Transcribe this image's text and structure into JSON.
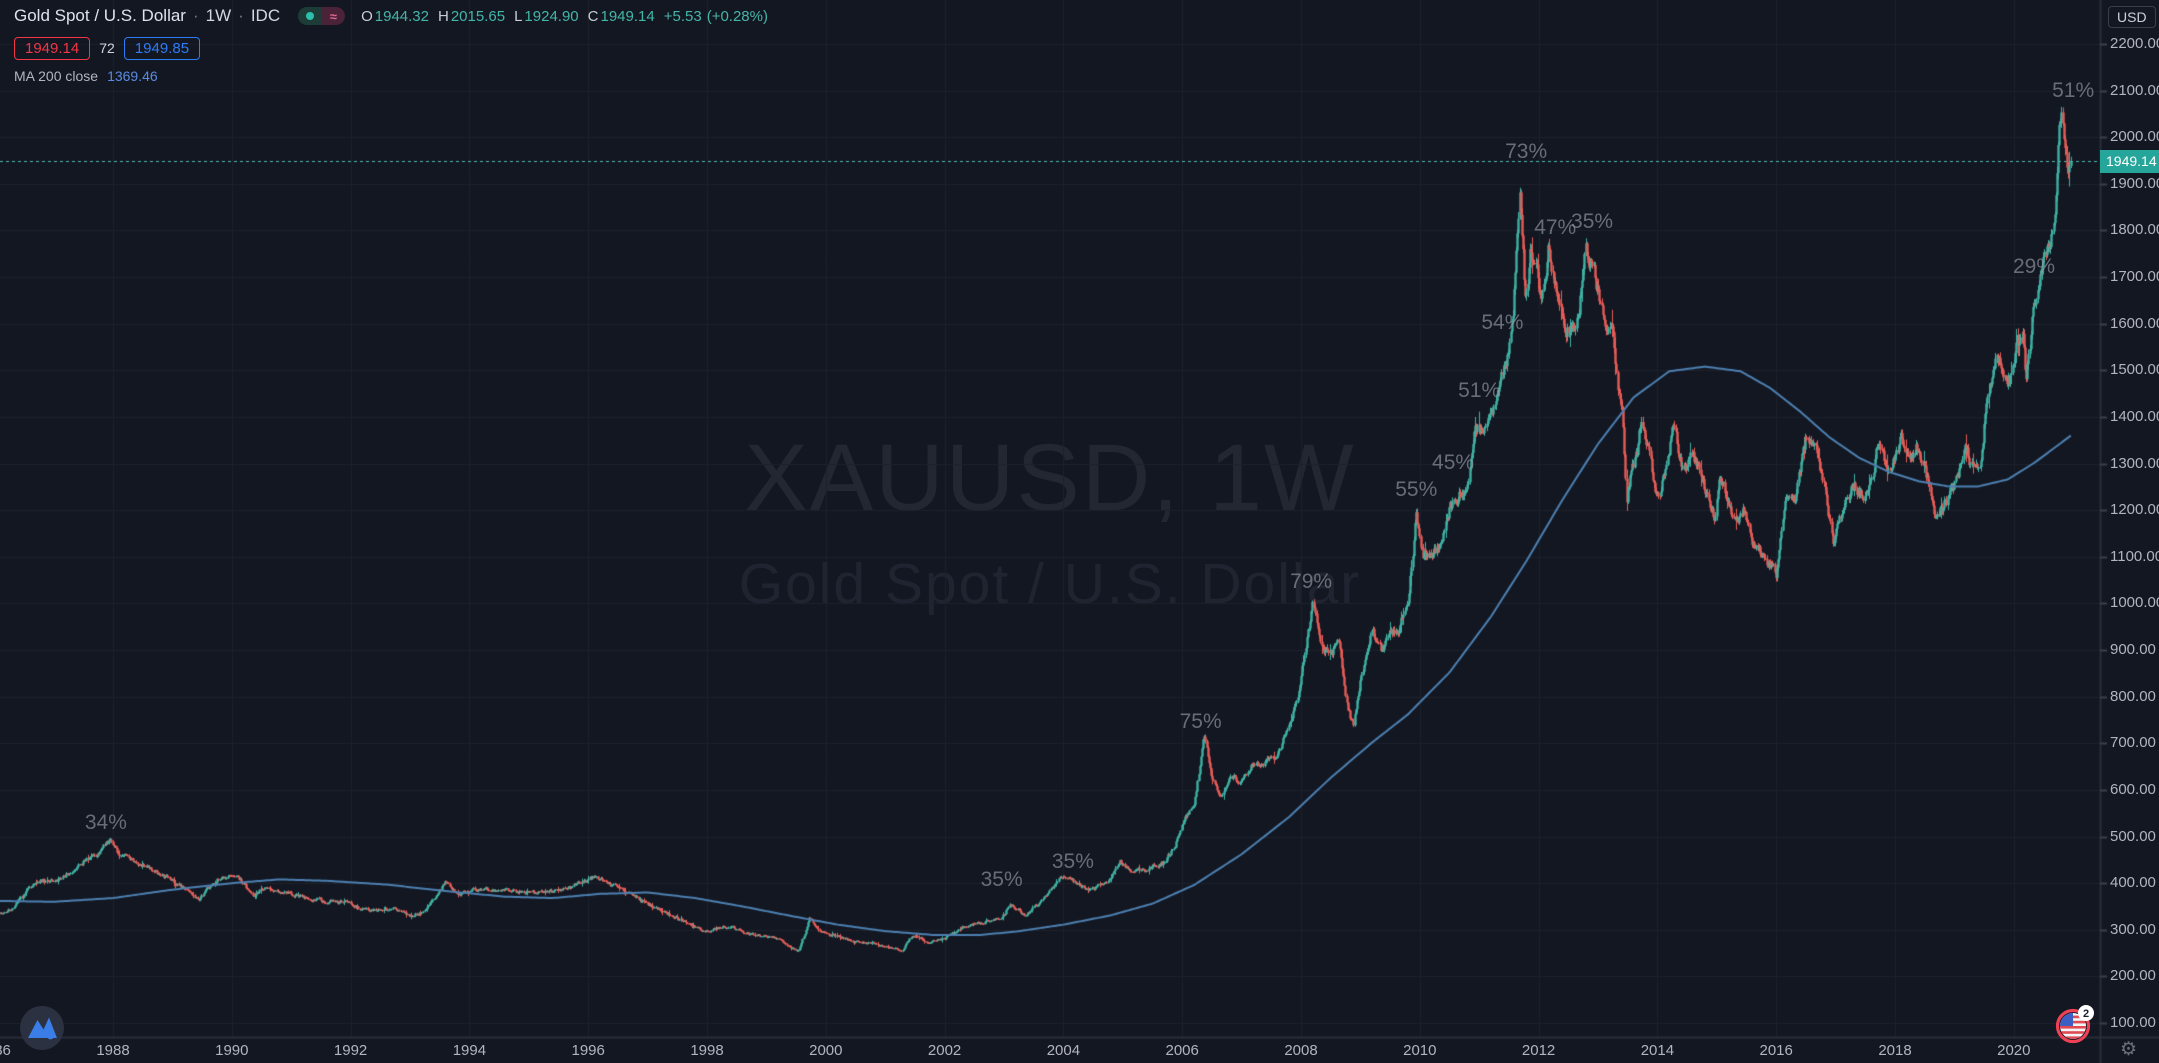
{
  "header": {
    "symbol_title": "Gold Spot / U.S. Dollar",
    "separator": "·",
    "interval": "1W",
    "exchange": "IDC",
    "ohlc": {
      "o_label": "O",
      "o": "1944.32",
      "h_label": "H",
      "h": "2015.65",
      "l_label": "L",
      "l": "1924.90",
      "c_label": "C",
      "c": "1949.14",
      "change": "+5.53",
      "change_pct": "(+0.28%)"
    },
    "sell_price": "1949.14",
    "spread": "72",
    "buy_price": "1949.85",
    "indicator": {
      "name": "MA 200 close",
      "value": "1369.46"
    },
    "wave_glyph": "≈"
  },
  "watermark": {
    "line1": "XAUUSD, 1W",
    "line2": "Gold Spot / U.S. Dollar"
  },
  "price_axis": {
    "currency_button": "USD",
    "last_price": "1949.14",
    "ticks": [
      "2200.00",
      "2100.00",
      "2000.00",
      "1900.00",
      "1800.00",
      "1700.00",
      "1600.00",
      "1500.00",
      "1400.00",
      "1300.00",
      "1200.00",
      "1100.00",
      "1000.00",
      "900.00",
      "800.00",
      "700.00",
      "600.00",
      "500.00",
      "400.00",
      "300.00",
      "200.00",
      "100.00"
    ]
  },
  "time_axis": {
    "ticks": [
      "1986",
      "1988",
      "1990",
      "1992",
      "1994",
      "1996",
      "1998",
      "2000",
      "2002",
      "2004",
      "2006",
      "2008",
      "2010",
      "2012",
      "2014",
      "2016",
      "2018",
      "2020"
    ]
  },
  "badge_count": "2",
  "gear_glyph": "⚙",
  "colors": {
    "background": "#131722",
    "grid": "#1e222d",
    "up": "#3fb1a3",
    "down": "#e65c57",
    "ma_line": "#4d80b1",
    "price_line": "#4fbfae",
    "last_price_bg": "#26a69a",
    "axis_line": "#2a2e39",
    "tick_dash": "#3c404b"
  },
  "chart_data": {
    "type": "candlestick",
    "symbol": "XAUUSD",
    "interval": "1W",
    "title": "Gold Spot / U.S. Dollar, 1 week candles with MA 200",
    "price_range": [
      100,
      2200
    ],
    "price_grid_step": 100,
    "time_range": [
      1986,
      2021.4
    ],
    "time_grid_step_years": 2,
    "last_close": 1949.14,
    "weeks_per_year": 52.18,
    "price_keypoints": [
      [
        1986.0,
        332
      ],
      [
        1986.3,
        346
      ],
      [
        1986.6,
        392
      ],
      [
        1986.8,
        406
      ],
      [
        1987.05,
        402
      ],
      [
        1987.3,
        428
      ],
      [
        1987.55,
        452
      ],
      [
        1987.75,
        462
      ],
      [
        1987.95,
        497
      ],
      [
        1988.1,
        462
      ],
      [
        1988.4,
        442
      ],
      [
        1988.75,
        422
      ],
      [
        1989.0,
        406
      ],
      [
        1989.2,
        386
      ],
      [
        1989.45,
        366
      ],
      [
        1989.75,
        408
      ],
      [
        1990.1,
        414
      ],
      [
        1990.35,
        372
      ],
      [
        1990.6,
        396
      ],
      [
        1990.8,
        382
      ],
      [
        1991.1,
        374
      ],
      [
        1991.5,
        362
      ],
      [
        1991.9,
        358
      ],
      [
        1992.3,
        342
      ],
      [
        1992.7,
        346
      ],
      [
        1993.05,
        330
      ],
      [
        1993.25,
        342
      ],
      [
        1993.6,
        404
      ],
      [
        1993.8,
        372
      ],
      [
        1994.1,
        386
      ],
      [
        1994.6,
        386
      ],
      [
        1995.1,
        378
      ],
      [
        1995.6,
        386
      ],
      [
        1996.1,
        414
      ],
      [
        1996.5,
        390
      ],
      [
        1997.0,
        354
      ],
      [
        1997.5,
        324
      ],
      [
        1998.0,
        296
      ],
      [
        1998.35,
        308
      ],
      [
        1998.75,
        290
      ],
      [
        1999.1,
        284
      ],
      [
        1999.55,
        255
      ],
      [
        1999.72,
        324
      ],
      [
        1999.9,
        298
      ],
      [
        2000.15,
        286
      ],
      [
        2000.45,
        276
      ],
      [
        2000.75,
        270
      ],
      [
        2001.05,
        262
      ],
      [
        2001.3,
        257
      ],
      [
        2001.45,
        288
      ],
      [
        2001.7,
        274
      ],
      [
        2002.0,
        282
      ],
      [
        2002.35,
        308
      ],
      [
        2002.65,
        316
      ],
      [
        2002.95,
        322
      ],
      [
        2003.1,
        354
      ],
      [
        2003.35,
        332
      ],
      [
        2003.65,
        362
      ],
      [
        2003.95,
        414
      ],
      [
        2004.15,
        404
      ],
      [
        2004.35,
        392
      ],
      [
        2004.5,
        386
      ],
      [
        2004.75,
        402
      ],
      [
        2004.95,
        446
      ],
      [
        2005.15,
        424
      ],
      [
        2005.4,
        430
      ],
      [
        2005.65,
        442
      ],
      [
        2005.85,
        472
      ],
      [
        2006.05,
        546
      ],
      [
        2006.2,
        562
      ],
      [
        2006.37,
        718
      ],
      [
        2006.5,
        618
      ],
      [
        2006.67,
        582
      ],
      [
        2006.8,
        636
      ],
      [
        2006.95,
        616
      ],
      [
        2007.15,
        652
      ],
      [
        2007.4,
        662
      ],
      [
        2007.6,
        668
      ],
      [
        2007.8,
        744
      ],
      [
        2007.95,
        806
      ],
      [
        2008.05,
        882
      ],
      [
        2008.2,
        1002
      ],
      [
        2008.35,
        908
      ],
      [
        2008.5,
        882
      ],
      [
        2008.62,
        938
      ],
      [
        2008.75,
        792
      ],
      [
        2008.88,
        732
      ],
      [
        2008.97,
        818
      ],
      [
        2009.1,
        892
      ],
      [
        2009.2,
        938
      ],
      [
        2009.35,
        902
      ],
      [
        2009.5,
        928
      ],
      [
        2009.65,
        948
      ],
      [
        2009.8,
        1004
      ],
      [
        2009.93,
        1188
      ],
      [
        2010.05,
        1102
      ],
      [
        2010.2,
        1112
      ],
      [
        2010.35,
        1124
      ],
      [
        2010.5,
        1202
      ],
      [
        2010.65,
        1232
      ],
      [
        2010.8,
        1252
      ],
      [
        2010.93,
        1382
      ],
      [
        2011.05,
        1362
      ],
      [
        2011.25,
        1428
      ],
      [
        2011.45,
        1512
      ],
      [
        2011.56,
        1594
      ],
      [
        2011.68,
        1892
      ],
      [
        2011.72,
        1812
      ],
      [
        2011.78,
        1648
      ],
      [
        2011.85,
        1744
      ],
      [
        2011.95,
        1726
      ],
      [
        2012.05,
        1642
      ],
      [
        2012.16,
        1768
      ],
      [
        2012.3,
        1652
      ],
      [
        2012.45,
        1574
      ],
      [
        2012.58,
        1604
      ],
      [
        2012.68,
        1622
      ],
      [
        2012.78,
        1772
      ],
      [
        2012.92,
        1712
      ],
      [
        2013.02,
        1662
      ],
      [
        2013.12,
        1608
      ],
      [
        2013.25,
        1592
      ],
      [
        2013.33,
        1468
      ],
      [
        2013.42,
        1388
      ],
      [
        2013.48,
        1232
      ],
      [
        2013.56,
        1288
      ],
      [
        2013.65,
        1322
      ],
      [
        2013.72,
        1388
      ],
      [
        2013.85,
        1318
      ],
      [
        2013.96,
        1232
      ],
      [
        2014.05,
        1252
      ],
      [
        2014.18,
        1322
      ],
      [
        2014.27,
        1378
      ],
      [
        2014.42,
        1292
      ],
      [
        2014.56,
        1318
      ],
      [
        2014.7,
        1282
      ],
      [
        2014.85,
        1222
      ],
      [
        2014.96,
        1184
      ],
      [
        2015.06,
        1282
      ],
      [
        2015.2,
        1202
      ],
      [
        2015.35,
        1182
      ],
      [
        2015.46,
        1202
      ],
      [
        2015.6,
        1132
      ],
      [
        2015.76,
        1102
      ],
      [
        2015.9,
        1082
      ],
      [
        2016.0,
        1064
      ],
      [
        2016.16,
        1238
      ],
      [
        2016.32,
        1228
      ],
      [
        2016.5,
        1358
      ],
      [
        2016.65,
        1342
      ],
      [
        2016.8,
        1252
      ],
      [
        2016.96,
        1132
      ],
      [
        2017.12,
        1202
      ],
      [
        2017.3,
        1254
      ],
      [
        2017.46,
        1232
      ],
      [
        2017.6,
        1256
      ],
      [
        2017.72,
        1344
      ],
      [
        2017.86,
        1282
      ],
      [
        2018.0,
        1312
      ],
      [
        2018.1,
        1354
      ],
      [
        2018.26,
        1322
      ],
      [
        2018.4,
        1338
      ],
      [
        2018.56,
        1256
      ],
      [
        2018.66,
        1182
      ],
      [
        2018.8,
        1202
      ],
      [
        2018.96,
        1242
      ],
      [
        2019.1,
        1292
      ],
      [
        2019.18,
        1338
      ],
      [
        2019.3,
        1292
      ],
      [
        2019.42,
        1276
      ],
      [
        2019.52,
        1402
      ],
      [
        2019.65,
        1508
      ],
      [
        2019.73,
        1528
      ],
      [
        2019.85,
        1472
      ],
      [
        2019.96,
        1482
      ],
      [
        2020.06,
        1562
      ],
      [
        2020.16,
        1578
      ],
      [
        2020.21,
        1472
      ],
      [
        2020.32,
        1622
      ],
      [
        2020.42,
        1702
      ],
      [
        2020.52,
        1732
      ],
      [
        2020.6,
        1772
      ],
      [
        2020.67,
        1812
      ],
      [
        2020.74,
        1958
      ],
      [
        2020.8,
        2062
      ],
      [
        2020.85,
        1988
      ],
      [
        2020.9,
        1938
      ],
      [
        2020.96,
        1949.14
      ]
    ],
    "ma200_keypoints": [
      [
        1986.0,
        362
      ],
      [
        1987.0,
        360
      ],
      [
        1988.0,
        368
      ],
      [
        1989.0,
        386
      ],
      [
        1990.0,
        400
      ],
      [
        1990.8,
        408
      ],
      [
        1991.6,
        405
      ],
      [
        1992.6,
        397
      ],
      [
        1993.6,
        383
      ],
      [
        1994.6,
        371
      ],
      [
        1995.4,
        368
      ],
      [
        1996.2,
        377
      ],
      [
        1997.0,
        380
      ],
      [
        1997.8,
        368
      ],
      [
        1998.6,
        350
      ],
      [
        1999.4,
        330
      ],
      [
        2000.2,
        311
      ],
      [
        2001.0,
        297
      ],
      [
        2001.8,
        289
      ],
      [
        2002.6,
        289
      ],
      [
        2003.2,
        296
      ],
      [
        2004.0,
        311
      ],
      [
        2004.8,
        331
      ],
      [
        2005.5,
        356
      ],
      [
        2006.2,
        396
      ],
      [
        2007.0,
        462
      ],
      [
        2007.8,
        542
      ],
      [
        2008.5,
        626
      ],
      [
        2009.2,
        702
      ],
      [
        2009.8,
        762
      ],
      [
        2010.5,
        852
      ],
      [
        2011.2,
        972
      ],
      [
        2011.8,
        1092
      ],
      [
        2012.4,
        1222
      ],
      [
        2013.0,
        1342
      ],
      [
        2013.6,
        1442
      ],
      [
        2014.2,
        1498
      ],
      [
        2014.8,
        1508
      ],
      [
        2015.4,
        1498
      ],
      [
        2015.9,
        1462
      ],
      [
        2016.4,
        1412
      ],
      [
        2016.9,
        1356
      ],
      [
        2017.4,
        1312
      ],
      [
        2017.9,
        1282
      ],
      [
        2018.4,
        1262
      ],
      [
        2018.9,
        1251
      ],
      [
        2019.4,
        1251
      ],
      [
        2019.9,
        1266
      ],
      [
        2020.35,
        1302
      ],
      [
        2020.96,
        1360
      ]
    ],
    "annotations": [
      {
        "label": "34%",
        "year": 1987.88,
        "price": 529
      },
      {
        "label": "35%",
        "year": 2002.96,
        "price": 407
      },
      {
        "label": "35%",
        "year": 2004.16,
        "price": 445
      },
      {
        "label": "75%",
        "year": 2006.31,
        "price": 746
      },
      {
        "label": "79%",
        "year": 2008.17,
        "price": 1046
      },
      {
        "label": "55%",
        "year": 2009.94,
        "price": 1243
      },
      {
        "label": "45%",
        "year": 2010.56,
        "price": 1301
      },
      {
        "label": "51%",
        "year": 2011.0,
        "price": 1456
      },
      {
        "label": "54%",
        "year": 2011.39,
        "price": 1601
      },
      {
        "label": "73%",
        "year": 2011.79,
        "price": 1968
      },
      {
        "label": "47%",
        "year": 2012.28,
        "price": 1805
      },
      {
        "label": "35%",
        "year": 2012.9,
        "price": 1818
      },
      {
        "label": "29%",
        "year": 2020.34,
        "price": 1721
      },
      {
        "label": "51%",
        "year": 2021.0,
        "price": 2100
      }
    ]
  }
}
